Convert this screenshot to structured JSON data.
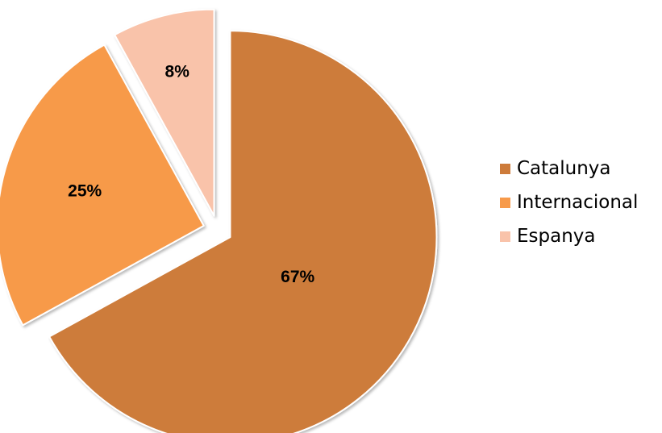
{
  "chart_data": {
    "type": "pie",
    "categories": [
      "Catalunya",
      "Internacional",
      "Espanya"
    ],
    "values": [
      67,
      25,
      8
    ],
    "labels": [
      "67%",
      "25%",
      "8%"
    ],
    "colors": [
      "#CD7B3A",
      "#F79A4A",
      "#F9C3AA"
    ],
    "exploded": true,
    "legend": {
      "placement": "right",
      "items": [
        {
          "label": "Catalunya",
          "color": "#CD7B3A"
        },
        {
          "label": "Internacional",
          "color": "#F79A4A"
        },
        {
          "label": "Espanya",
          "color": "#F9C3AA"
        }
      ]
    }
  }
}
